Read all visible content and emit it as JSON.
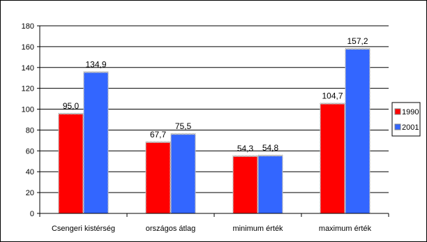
{
  "chart_data": {
    "type": "bar",
    "categories": [
      "Csengeri kistérség",
      "országos átlag",
      "minimum érték",
      "maximum érték"
    ],
    "series": [
      {
        "name": "1990",
        "values": [
          95.0,
          67.7,
          54.3,
          104.7
        ],
        "labels": [
          "95,0",
          "67,7",
          "54,3",
          "104,7"
        ],
        "color": "#ff0000"
      },
      {
        "name": "2001",
        "values": [
          134.9,
          75.5,
          54.8,
          157.2
        ],
        "labels": [
          "134,9",
          "75,5",
          "54,8",
          "157,2"
        ],
        "color": "#3366ff"
      }
    ],
    "y_ticks": [
      "0",
      "20",
      "40",
      "60",
      "80",
      "100",
      "120",
      "140",
      "160",
      "180"
    ],
    "ylim": [
      0,
      180
    ],
    "grid": true,
    "legend_position": "right"
  }
}
